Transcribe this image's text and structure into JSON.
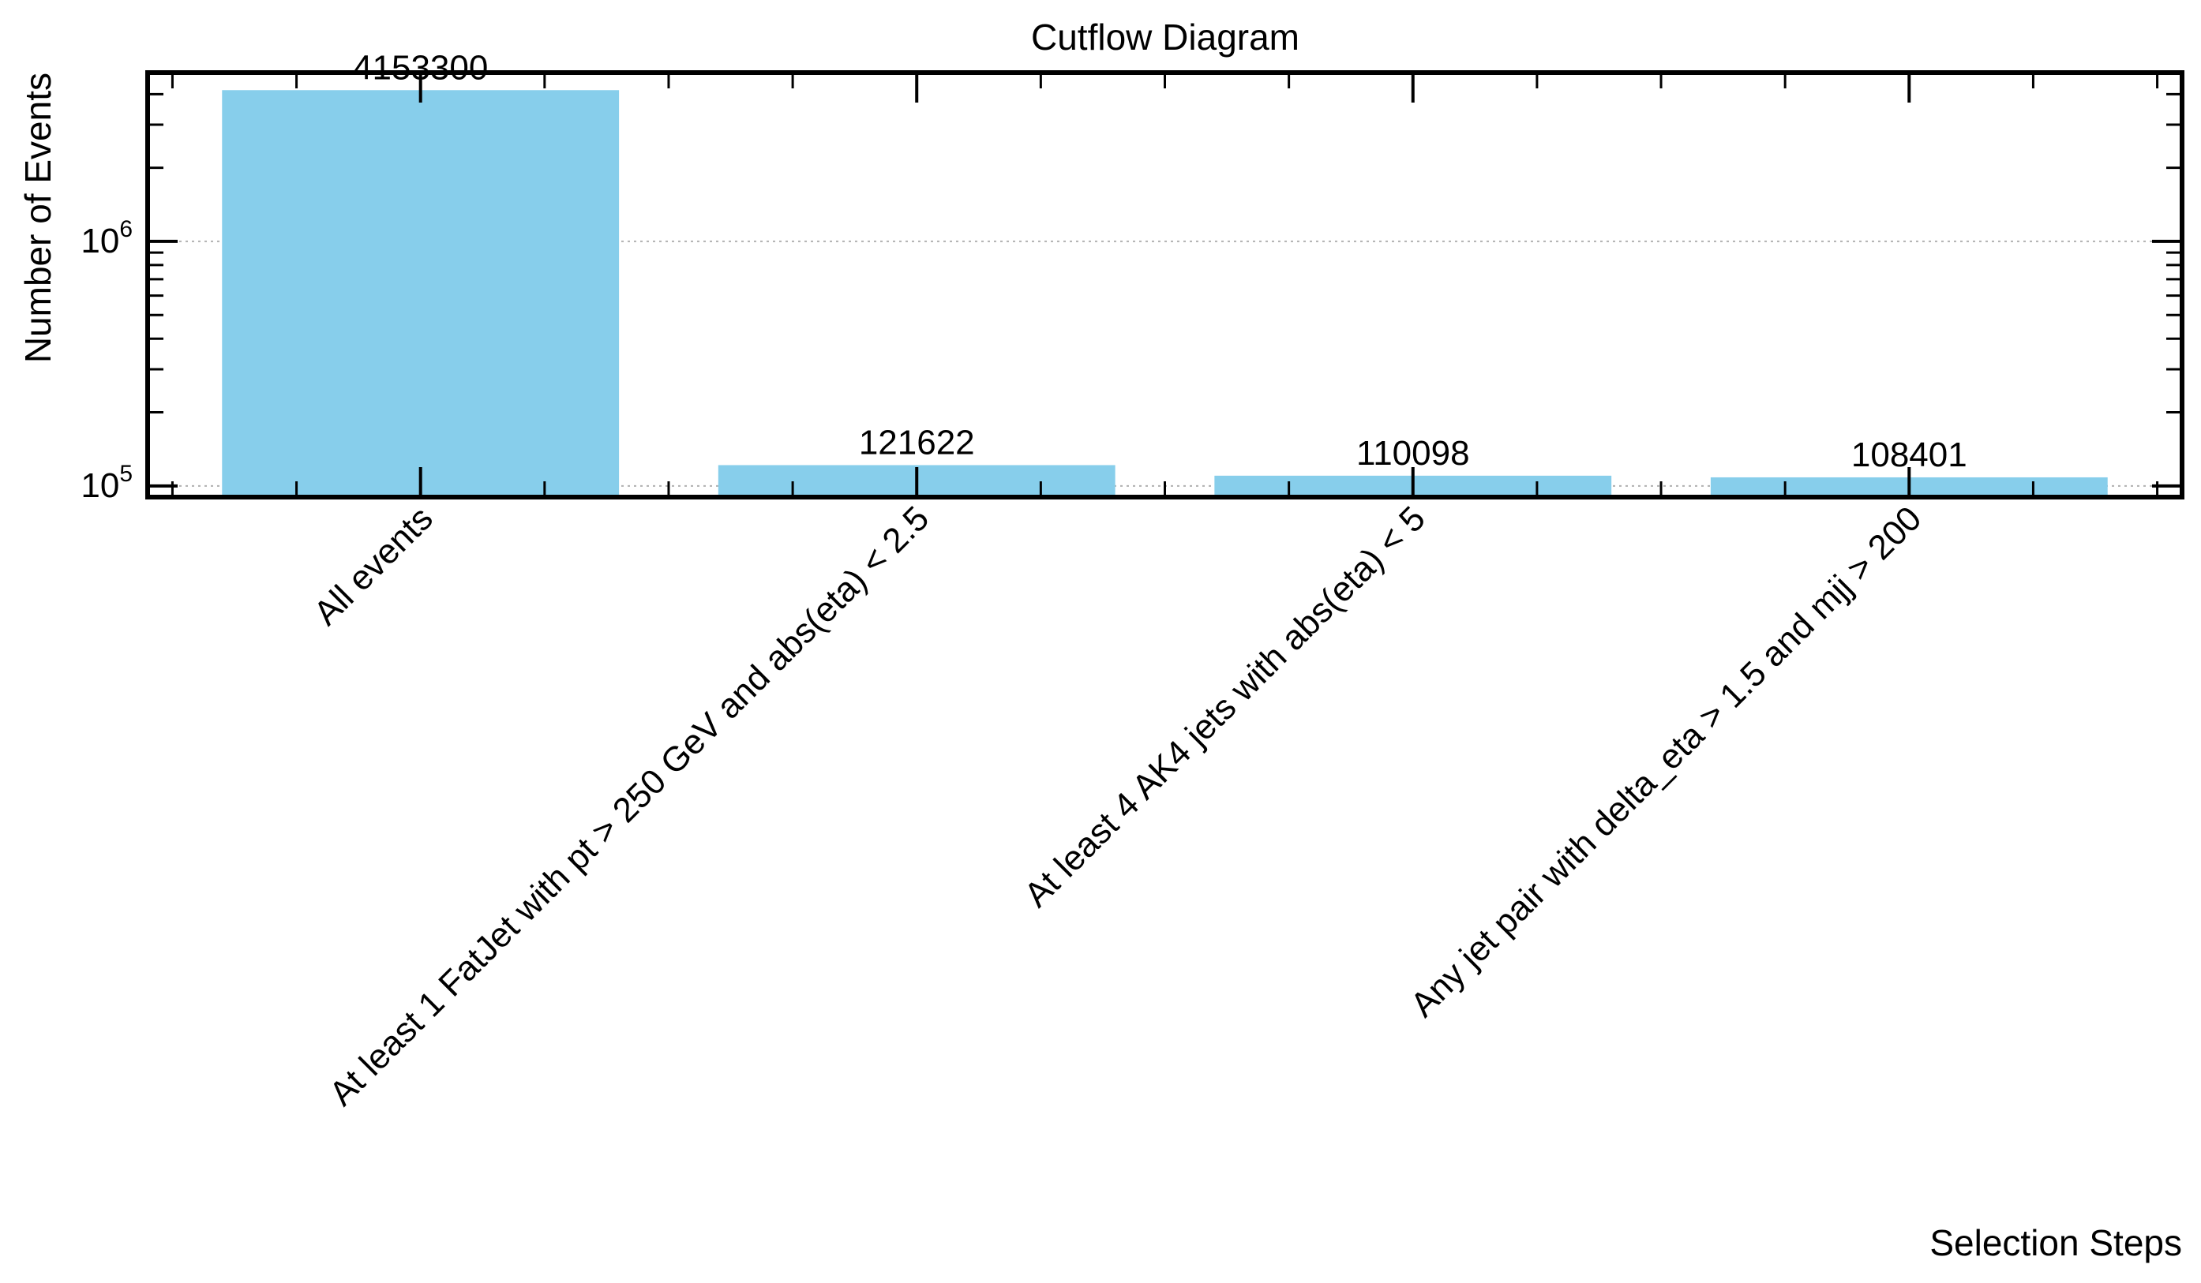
{
  "chart_data": {
    "type": "bar",
    "title": "Cutflow Diagram",
    "xlabel": "Selection Steps",
    "ylabel": "Number of Events",
    "yscale": "log",
    "ylim": [
      90000,
      4900000
    ],
    "y_ticks": [
      {
        "value": 100000,
        "base": "10",
        "exp": "5"
      },
      {
        "value": 1000000,
        "base": "10",
        "exp": "6"
      }
    ],
    "categories": [
      "All events",
      "At least 1 FatJet with pt > 250 GeV and abs(eta) < 2.5",
      "At least 4 AK4 jets with abs(eta) < 5",
      "Any jet pair with delta_eta > 1.5 and mjj > 200"
    ],
    "values": [
      4153300,
      121622,
      110098,
      108401
    ],
    "value_labels": [
      "4153300",
      "121622",
      "110098",
      "108401"
    ],
    "bar_color": "#87ceeb",
    "grid": "y-major-dotted",
    "legend": "none"
  }
}
